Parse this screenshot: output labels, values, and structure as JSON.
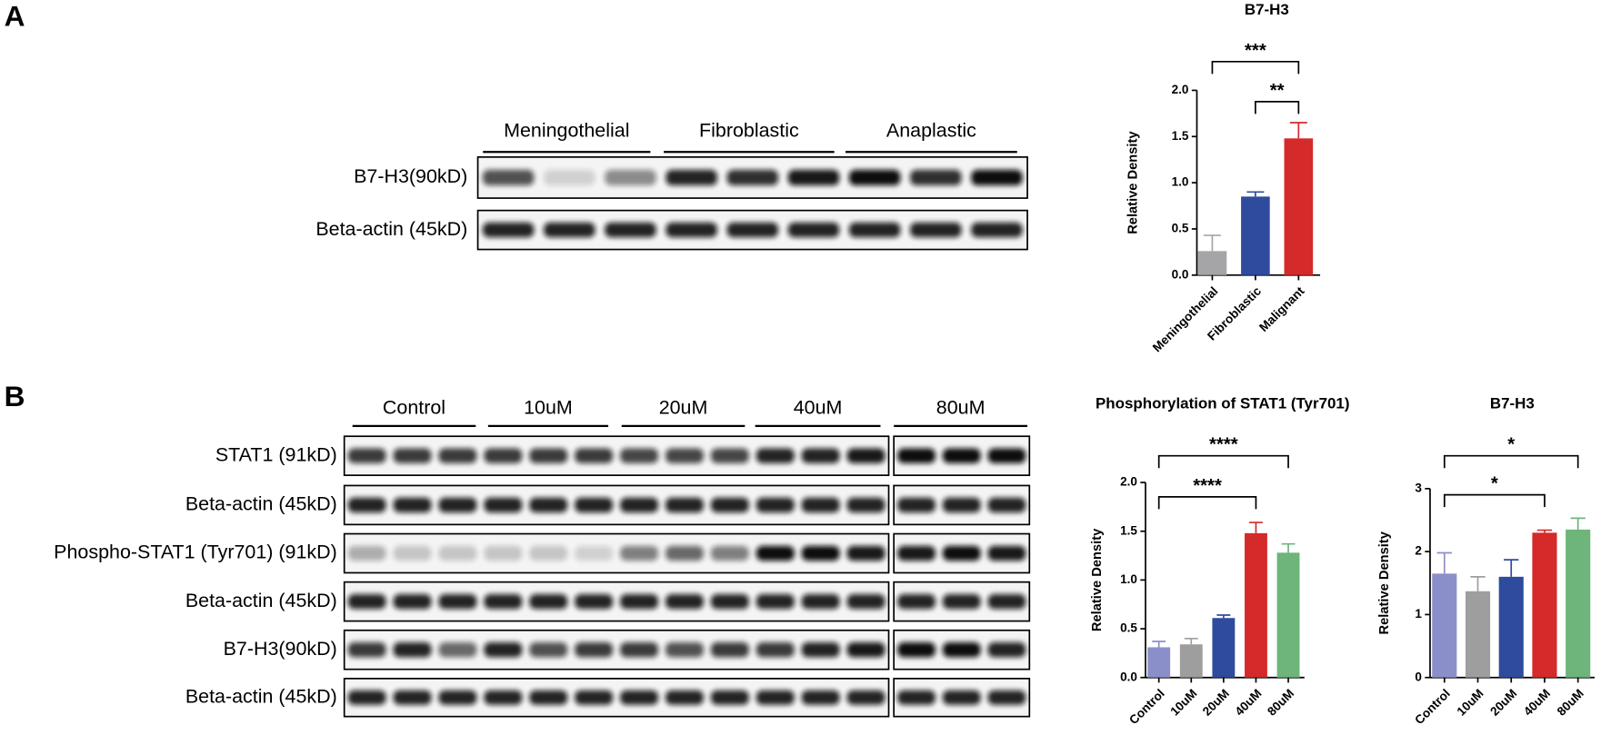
{
  "panel_labels": [
    "A",
    "B"
  ],
  "blots": [
    {
      "groups": [
        "Meningothelial",
        "Fibroblastic",
        "Anaplastic"
      ],
      "rows": [
        "B7-H3(90kD)",
        "Beta-actin (45kD)"
      ]
    },
    {
      "groups": [
        "Control",
        "10uM",
        "20uM",
        "40uM",
        "80uM"
      ],
      "rows": [
        "STAT1 (91kD)",
        "Beta-actin (45kD)",
        "Phospho-STAT1 (Tyr701) (91kD)",
        "Beta-actin (45kD)",
        "B7-H3(90kD)",
        "Beta-actin (45kD)"
      ]
    }
  ],
  "chart_data": [
    {
      "type": "bar",
      "title": "B7-H3",
      "y_label": "Relative Density",
      "categories": [
        "Meningothelial",
        "Fibroblastic",
        "Malignant"
      ],
      "values": [
        0.26,
        0.85,
        1.48
      ],
      "errors": [
        0.17,
        0.05,
        0.17
      ],
      "colors": [
        "#a5a5a8",
        "#2f4b9e",
        "#d42a2a"
      ],
      "ylim": [
        0,
        2.0
      ],
      "yticks": [
        {
          "value": 0,
          "label": "0.0"
        },
        {
          "value": 0.5,
          "label": "0.5"
        },
        {
          "value": 1,
          "label": "1.0"
        },
        {
          "value": 1.5,
          "label": "1.5"
        },
        {
          "value": 2,
          "label": "2.0"
        }
      ],
      "annotations": [
        {
          "text": "***",
          "from": "Meningothelial",
          "to": "Malignant"
        },
        {
          "text": "**",
          "from": "Fibroblastic",
          "to": "Malignant"
        }
      ]
    },
    {
      "type": "bar",
      "title": "Phosphorylation of STAT1 (Tyr701)",
      "y_label": "Relative Density",
      "categories": [
        "Control",
        "10uM",
        "20uM",
        "40uM",
        "80uM"
      ],
      "values": [
        0.31,
        0.34,
        0.61,
        1.48,
        1.28
      ],
      "errors": [
        0.06,
        0.06,
        0.03,
        0.11,
        0.09
      ],
      "colors": [
        "#8b8fc9",
        "#9e9e9e",
        "#2f4b9e",
        "#d42a2a",
        "#6db57a"
      ],
      "ylim": [
        0,
        2.0
      ],
      "yticks": [
        {
          "value": 0,
          "label": "0.0"
        },
        {
          "value": 0.5,
          "label": "0.5"
        },
        {
          "value": 1,
          "label": "1.0"
        },
        {
          "value": 1.5,
          "label": "1.5"
        },
        {
          "value": 2,
          "label": "2.0"
        }
      ],
      "annotations": [
        {
          "text": "****",
          "from": "Control",
          "to": "80uM"
        },
        {
          "text": "****",
          "from": "Control",
          "to": "40uM"
        }
      ]
    },
    {
      "type": "bar",
      "title": "B7-H3",
      "y_label": "Relative Density",
      "categories": [
        "Control",
        "10uM",
        "20uM",
        "40uM",
        "80uM"
      ],
      "values": [
        1.65,
        1.37,
        1.6,
        2.3,
        2.35
      ],
      "errors": [
        0.33,
        0.23,
        0.27,
        0.04,
        0.18
      ],
      "colors": [
        "#8b8fc9",
        "#9e9e9e",
        "#2f4b9e",
        "#d42a2a",
        "#6db57a"
      ],
      "ylim": [
        0,
        3
      ],
      "yticks": [
        0,
        1,
        2,
        3
      ],
      "annotations": [
        {
          "text": "*",
          "from": "Control",
          "to": "80uM"
        },
        {
          "text": "*",
          "from": "Control",
          "to": "40uM"
        }
      ]
    }
  ]
}
